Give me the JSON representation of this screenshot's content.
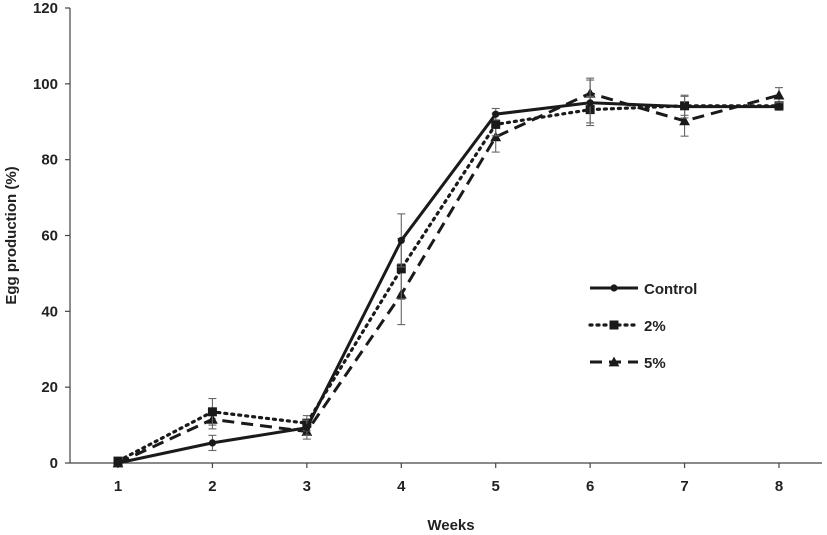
{
  "chart_data": {
    "type": "line",
    "title": "",
    "xlabel": "Weeks",
    "ylabel": "Egg production (%)",
    "categories": [
      "1",
      "2",
      "3",
      "4",
      "5",
      "6",
      "7",
      "8"
    ],
    "x": [
      1,
      2,
      3,
      4,
      5,
      6,
      7,
      8
    ],
    "ylim": [
      0,
      120
    ],
    "yticks": [
      0,
      20,
      40,
      60,
      80,
      100,
      120
    ],
    "grid": false,
    "legend_position": "right",
    "series": [
      {
        "name": "Control",
        "line_style": "solid",
        "marker": "circle",
        "color": "#1a1a1a",
        "values": [
          0,
          5.3,
          9.3,
          58.7,
          92,
          95,
          94,
          94
        ],
        "errors": [
          0,
          2,
          2,
          7,
          1.5,
          6,
          3,
          1
        ]
      },
      {
        "name": "2%",
        "line_style": "dotted",
        "marker": "square",
        "color": "#1a1a1a",
        "values": [
          0.5,
          13.5,
          10.5,
          51.2,
          89.3,
          93.2,
          94.2,
          94.2
        ],
        "errors": [
          0.5,
          3.5,
          2,
          8,
          3,
          3.5,
          2.5,
          1
        ]
      },
      {
        "name": "5%",
        "line_style": "dashed",
        "marker": "triangle",
        "color": "#1a1a1a",
        "values": [
          0,
          11.5,
          8.3,
          44.5,
          86,
          97.5,
          90.2,
          97
        ],
        "errors": [
          0,
          2.5,
          2,
          8,
          4,
          4,
          4,
          2
        ]
      }
    ]
  }
}
